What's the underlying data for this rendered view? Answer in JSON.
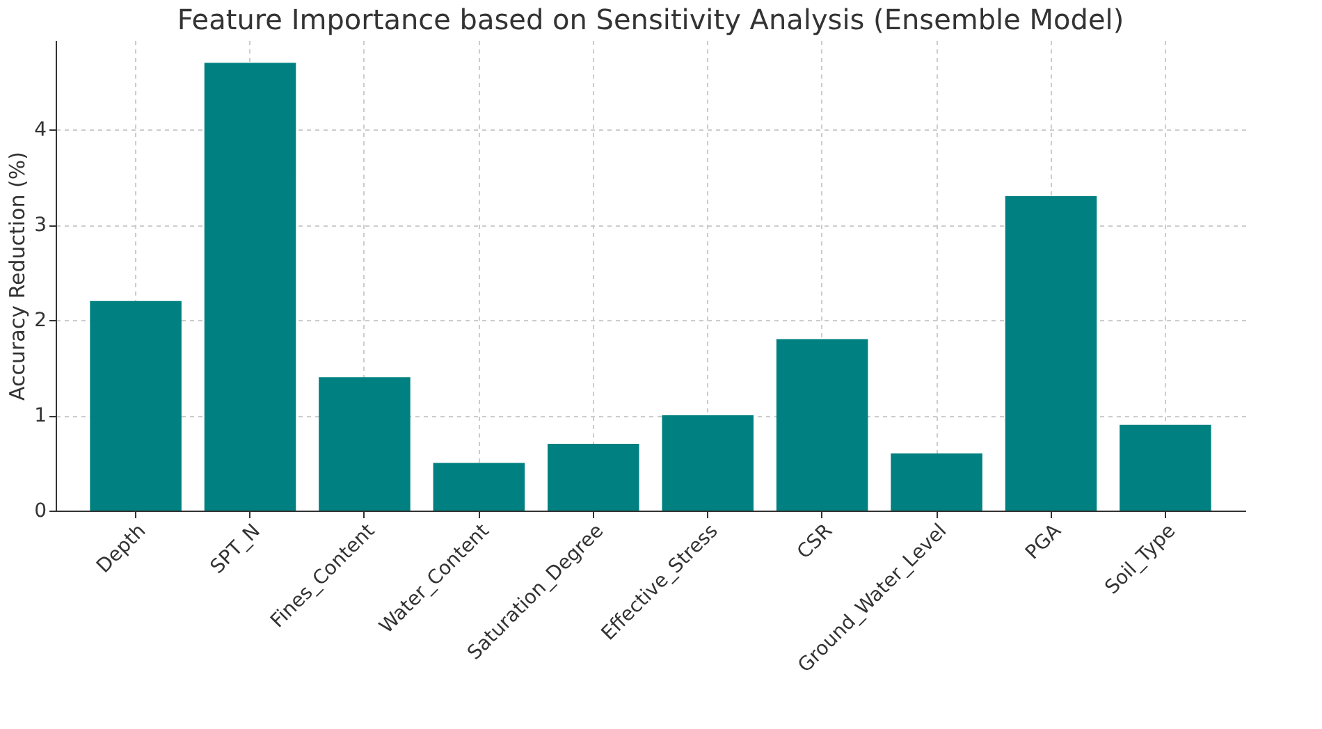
{
  "chart_data": {
    "type": "bar",
    "title": "Feature Importance based on Sensitivity Analysis (Ensemble Model)",
    "ylabel": "Accuracy Reduction (%)",
    "categories": [
      "Depth",
      "SPT_N",
      "Fines_Content",
      "Water_Content",
      "Saturation_Degree",
      "Effective_Stress",
      "CSR",
      "Ground_Water_Level",
      "PGA",
      "Soil_Type"
    ],
    "values": [
      2.2,
      4.7,
      1.4,
      0.5,
      0.7,
      1.0,
      1.8,
      0.6,
      3.3,
      0.9
    ],
    "color": "#008080",
    "ylim": [
      0,
      4.935
    ],
    "yticks": [
      0,
      1,
      2,
      3,
      4
    ],
    "grid": true
  }
}
